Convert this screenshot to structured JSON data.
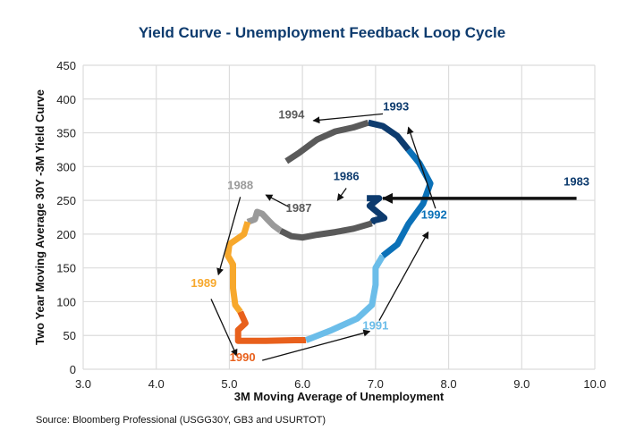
{
  "chart_data": {
    "type": "line",
    "title": "Yield Curve - Unemployment Feedback Loop Cycle",
    "xlabel": "3M Moving Average of Unemployment",
    "ylabel": "Two Year Moving Average 30Y -3M Yield Curve",
    "source": "Source: Bloomberg Professional (USGG30Y, GB3 and USURTOT)",
    "xlim": [
      3.0,
      10.0
    ],
    "ylim": [
      0,
      450
    ],
    "xticks": [
      "3.0",
      "4.0",
      "5.0",
      "6.0",
      "7.0",
      "8.0",
      "9.0",
      "10.0"
    ],
    "yticks": [
      "0",
      "50",
      "100",
      "150",
      "200",
      "250",
      "300",
      "350",
      "400",
      "450"
    ],
    "grid": true,
    "series": [
      {
        "name": "1986",
        "color": "#0d3b6e",
        "points": [
          [
            6.88,
            253
          ],
          [
            7.05,
            253
          ],
          [
            6.92,
            242
          ],
          [
            7.12,
            224
          ],
          [
            6.97,
            220
          ],
          [
            6.95,
            216
          ]
        ]
      },
      {
        "name": "1987",
        "color": "#5a5a5a",
        "points": [
          [
            6.95,
            216
          ],
          [
            6.7,
            208
          ],
          [
            6.45,
            203
          ],
          [
            6.2,
            199
          ],
          [
            6.0,
            195
          ],
          [
            5.85,
            197
          ],
          [
            5.7,
            205
          ]
        ]
      },
      {
        "name": "1988",
        "color": "#9a9a9a",
        "points": [
          [
            5.7,
            205
          ],
          [
            5.6,
            213
          ],
          [
            5.52,
            222
          ],
          [
            5.45,
            230
          ],
          [
            5.38,
            233
          ],
          [
            5.35,
            222
          ],
          [
            5.25,
            218
          ]
        ]
      },
      {
        "name": "1989",
        "color": "#f7a82c",
        "points": [
          [
            5.25,
            218
          ],
          [
            5.2,
            200
          ],
          [
            5.0,
            185
          ],
          [
            4.98,
            168
          ],
          [
            5.05,
            155
          ],
          [
            5.05,
            120
          ],
          [
            5.08,
            95
          ],
          [
            5.15,
            85
          ]
        ]
      },
      {
        "name": "1990",
        "color": "#e8601c",
        "points": [
          [
            5.15,
            85
          ],
          [
            5.22,
            68
          ],
          [
            5.12,
            58
          ],
          [
            5.12,
            42
          ],
          [
            5.5,
            42
          ],
          [
            5.9,
            43
          ],
          [
            6.05,
            43
          ]
        ]
      },
      {
        "name": "1991",
        "color": "#6bbde9",
        "points": [
          [
            6.05,
            43
          ],
          [
            6.4,
            58
          ],
          [
            6.75,
            75
          ],
          [
            6.95,
            95
          ],
          [
            7.0,
            125
          ],
          [
            7.0,
            150
          ],
          [
            7.1,
            168
          ]
        ]
      },
      {
        "name": "1992",
        "color": "#0b71b8",
        "points": [
          [
            7.1,
            168
          ],
          [
            7.3,
            185
          ],
          [
            7.45,
            215
          ],
          [
            7.65,
            245
          ],
          [
            7.75,
            275
          ],
          [
            7.6,
            305
          ],
          [
            7.45,
            325
          ]
        ]
      },
      {
        "name": "1993",
        "color": "#0d3b6e",
        "points": [
          [
            7.45,
            325
          ],
          [
            7.3,
            345
          ],
          [
            7.1,
            360
          ],
          [
            6.9,
            365
          ]
        ]
      },
      {
        "name": "1994",
        "color": "#5a5a5a",
        "points": [
          [
            6.9,
            365
          ],
          [
            6.7,
            358
          ],
          [
            6.45,
            352
          ],
          [
            6.2,
            340
          ],
          [
            5.95,
            320
          ],
          [
            5.78,
            308
          ]
        ]
      }
    ],
    "annotations": [
      {
        "text": "1983",
        "color": "#0d3b6e",
        "at": [
          9.75,
          272
        ],
        "arrow_from": [
          9.75,
          253
        ],
        "arrow_to": [
          7.1,
          253
        ],
        "bold_arrow": true
      },
      {
        "text": "1986",
        "color": "#0d3b6e",
        "at": [
          6.6,
          280
        ],
        "arrow_from": [
          6.6,
          268
        ],
        "arrow_to": [
          6.48,
          250
        ]
      },
      {
        "text": "1987",
        "color": "#5a5a5a",
        "at": [
          5.95,
          233
        ],
        "arrow_from": [
          5.82,
          240
        ],
        "arrow_to": [
          5.5,
          258
        ]
      },
      {
        "text": "1988",
        "color": "#9a9a9a",
        "at": [
          5.15,
          267
        ],
        "arrow_from": [
          5.15,
          255
        ],
        "arrow_to": [
          4.85,
          140
        ]
      },
      {
        "text": "1989",
        "color": "#f7a82c",
        "at": [
          4.65,
          122
        ],
        "arrow_from": [
          4.75,
          104
        ],
        "arrow_to": [
          5.1,
          20
        ]
      },
      {
        "text": "1990",
        "color": "#e8601c",
        "at": [
          5.18,
          12
        ],
        "arrow_from": [
          5.45,
          13
        ],
        "arrow_to": [
          6.92,
          56
        ]
      },
      {
        "text": "1991",
        "color": "#6bbde9",
        "at": [
          7.0,
          59
        ],
        "arrow_from": [
          7.05,
          72
        ],
        "arrow_to": [
          7.72,
          203
        ]
      },
      {
        "text": "1992",
        "color": "#0b71b8",
        "at": [
          7.8,
          223
        ],
        "arrow_from": [
          7.82,
          238
        ],
        "arrow_to": [
          7.45,
          358
        ]
      },
      {
        "text": "1993",
        "color": "#0d3b6e",
        "at": [
          7.28,
          383
        ],
        "arrow_from": [
          7.1,
          378
        ],
        "arrow_to": [
          6.15,
          368
        ]
      },
      {
        "text": "1994",
        "color": "#5a5a5a",
        "at": [
          5.85,
          371
        ]
      }
    ]
  }
}
